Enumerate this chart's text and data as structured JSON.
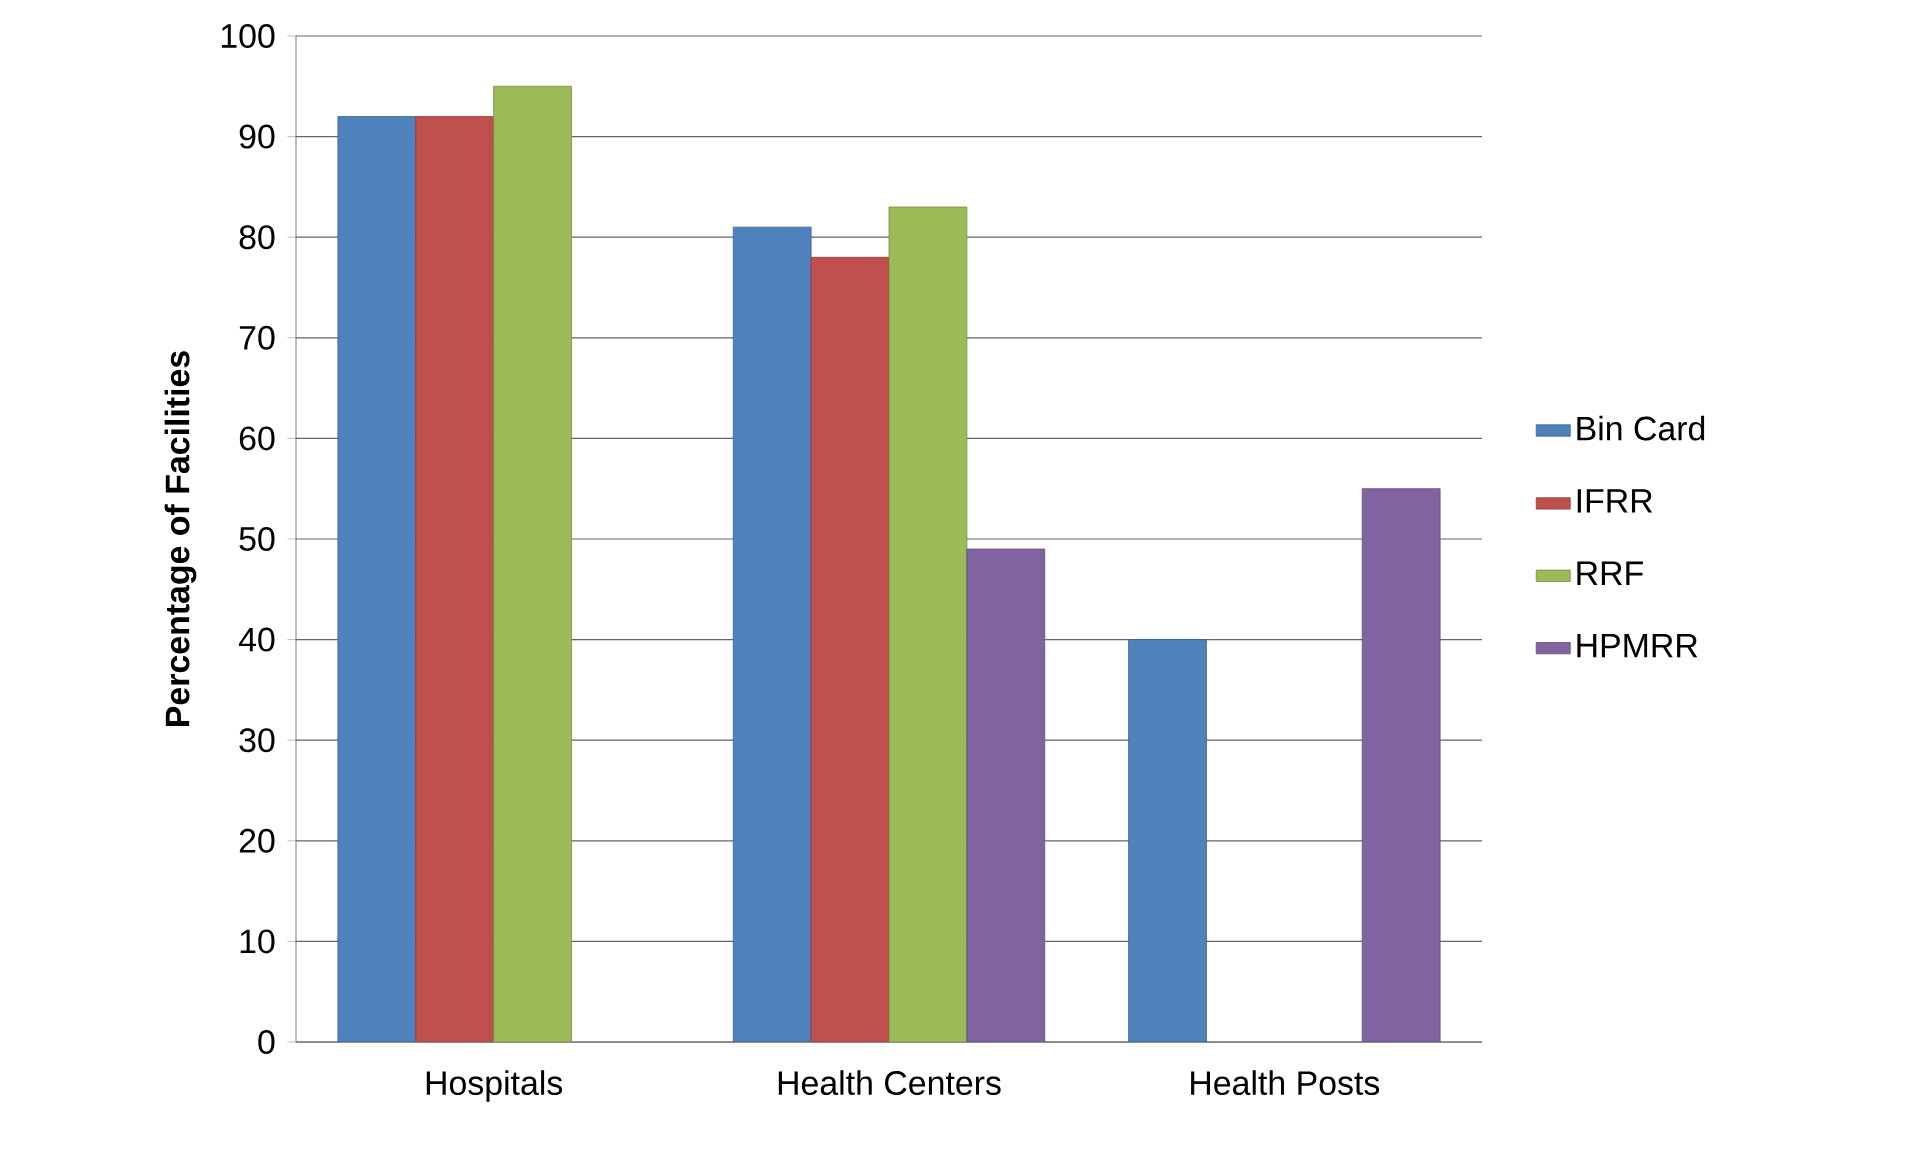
{
  "chart_data": {
    "type": "bar",
    "ylabel": "Percentage of Facilities",
    "categories": [
      "Hospitals",
      "Health Centers",
      "Health Posts"
    ],
    "series": [
      {
        "name": "Bin Card",
        "color": "#4f81bd",
        "values": [
          92,
          81,
          40
        ]
      },
      {
        "name": "IFRR",
        "color": "#c0504d",
        "values": [
          92,
          78,
          null
        ]
      },
      {
        "name": "RRF",
        "color": "#9bbb59",
        "values": [
          95,
          83,
          null
        ]
      },
      {
        "name": "HPMRR",
        "color": "#8064a2",
        "values": [
          null,
          49,
          55
        ]
      }
    ],
    "ylim": [
      0,
      100
    ],
    "yticks": [
      0,
      10,
      20,
      30,
      40,
      50,
      60,
      70,
      80,
      90,
      100
    ],
    "grid": "y",
    "legend": "right"
  }
}
